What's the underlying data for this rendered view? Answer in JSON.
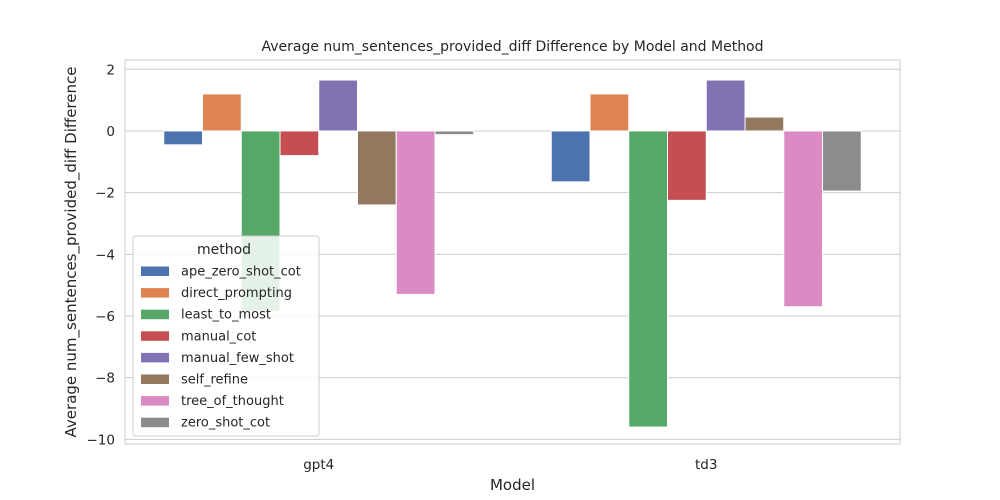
{
  "chart_data": {
    "type": "bar",
    "title": "Average num_sentences_provided_diff Difference by Model and Method",
    "xlabel": "Model",
    "ylabel": "Average num_sentences_provided_diff Difference",
    "categories": [
      "gpt4",
      "td3"
    ],
    "ylim": [
      -10.15,
      2.3
    ],
    "yticks": [
      2,
      0,
      -2,
      -4,
      -6,
      -8,
      -10
    ],
    "ytick_labels": [
      "2",
      "0",
      "−2",
      "−4",
      "−6",
      "−8",
      "−10"
    ],
    "grid": true,
    "legend": {
      "title": "method",
      "placement": "lower-left"
    },
    "series": [
      {
        "name": "ape_zero_shot_cot",
        "color": "#4c72b0",
        "values": [
          -0.45,
          -1.65
        ]
      },
      {
        "name": "direct_prompting",
        "color": "#dd8452",
        "values": [
          1.2,
          1.2
        ]
      },
      {
        "name": "least_to_most",
        "color": "#55a868",
        "values": [
          -5.85,
          -9.6
        ]
      },
      {
        "name": "manual_cot",
        "color": "#c44e52",
        "values": [
          -0.8,
          -2.25
        ]
      },
      {
        "name": "manual_few_shot",
        "color": "#8172b3",
        "values": [
          1.65,
          1.65
        ]
      },
      {
        "name": "self_refine",
        "color": "#937860",
        "values": [
          -2.4,
          0.45
        ]
      },
      {
        "name": "tree_of_thought",
        "color": "#da8bc3",
        "values": [
          -5.3,
          -5.7
        ]
      },
      {
        "name": "zero_shot_cot",
        "color": "#8c8c8c",
        "values": [
          -0.12,
          -1.95
        ]
      }
    ]
  }
}
